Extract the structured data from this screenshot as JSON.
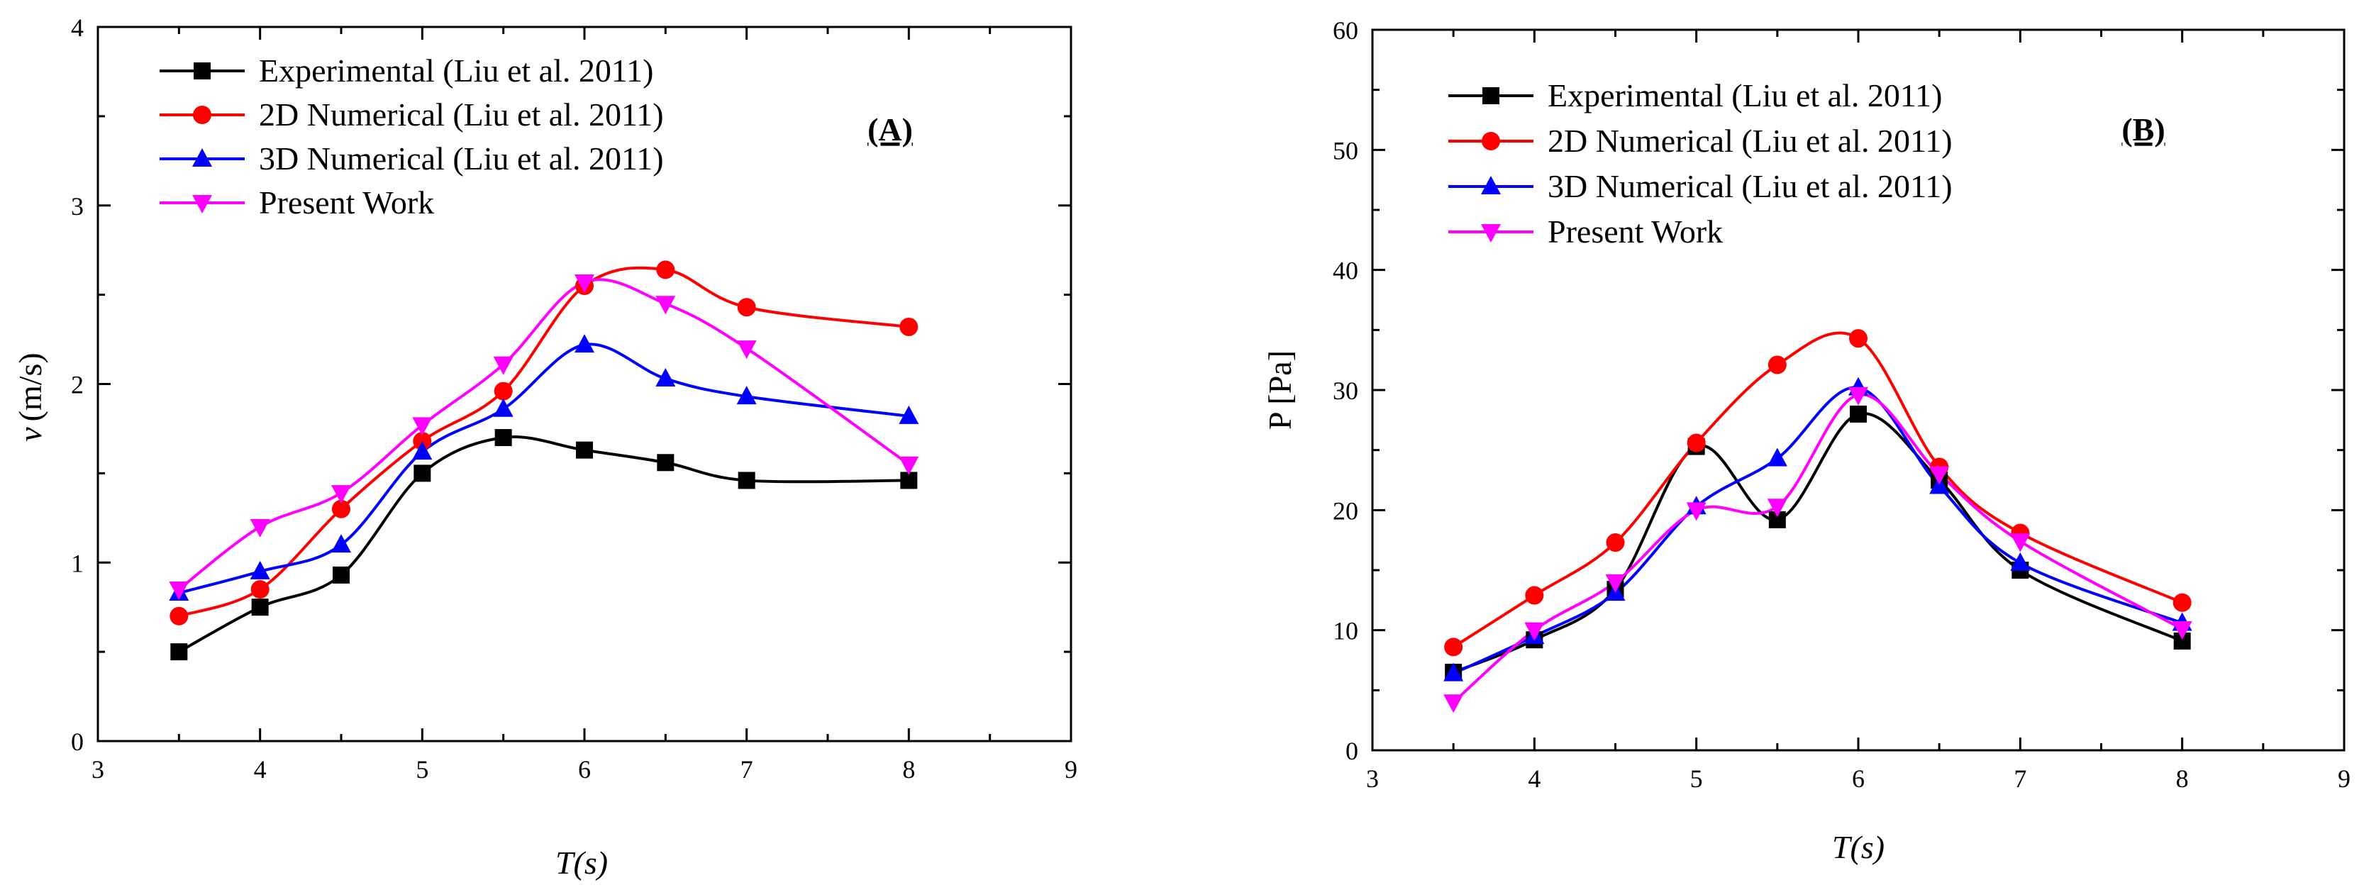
{
  "chart_data": [
    {
      "type": "line",
      "panel_label": "(A)",
      "xlabel": "T(s)",
      "ylabel_symbol": "v",
      "ylabel_unit": "(m/s)",
      "xlim": [
        3,
        9
      ],
      "ylim": [
        0,
        4
      ],
      "xticks": [
        3,
        4,
        5,
        6,
        7,
        8,
        9
      ],
      "yticks": [
        0,
        1,
        2,
        3,
        4
      ],
      "legend_position": "top-left",
      "series": [
        {
          "name": "Experimental (Liu et al. 2011)",
          "color": "#000000",
          "marker": "square",
          "x": [
            3.5,
            4.0,
            4.5,
            5.0,
            5.5,
            6.0,
            6.5,
            7.0,
            8.0
          ],
          "y": [
            0.5,
            0.75,
            0.93,
            1.5,
            1.7,
            1.63,
            1.56,
            1.46,
            1.46
          ]
        },
        {
          "name": "2D Numerical (Liu et al. 2011)",
          "color": "#ff0000",
          "marker": "circle",
          "x": [
            3.5,
            4.0,
            4.5,
            5.0,
            5.5,
            6.0,
            6.5,
            7.0,
            8.0
          ],
          "y": [
            0.7,
            0.85,
            1.3,
            1.68,
            1.96,
            2.55,
            2.64,
            2.43,
            2.32
          ]
        },
        {
          "name": "3D Numerical (Liu et al. 2011)",
          "color": "#0000ff",
          "marker": "triangle-up",
          "x": [
            3.5,
            4.0,
            4.5,
            5.0,
            5.5,
            6.0,
            6.5,
            7.0,
            8.0
          ],
          "y": [
            0.83,
            0.95,
            1.1,
            1.62,
            1.86,
            2.22,
            2.03,
            1.93,
            1.82
          ]
        },
        {
          "name": "Present Work",
          "color": "#ff00ff",
          "marker": "triangle-down",
          "x": [
            3.5,
            4.0,
            4.5,
            5.0,
            5.5,
            6.0,
            6.5,
            7.0,
            8.0
          ],
          "y": [
            0.85,
            1.2,
            1.39,
            1.77,
            2.11,
            2.57,
            2.45,
            2.2,
            1.55
          ]
        }
      ]
    },
    {
      "type": "line",
      "panel_label": "(B)",
      "xlabel": "T(s)",
      "ylabel_symbol": "P [Pa]",
      "ylabel_unit": "",
      "xlim": [
        3,
        9
      ],
      "ylim": [
        0,
        60
      ],
      "xticks": [
        3,
        4,
        5,
        6,
        7,
        8,
        9
      ],
      "yticks": [
        0,
        10,
        20,
        30,
        40,
        50,
        60
      ],
      "legend_position": "top-left",
      "series": [
        {
          "name": "Experimental (Liu et al. 2011)",
          "color": "#000000",
          "marker": "square",
          "x": [
            3.5,
            4.0,
            4.5,
            5.0,
            5.5,
            6.0,
            6.5,
            7.0,
            8.0
          ],
          "y": [
            6.5,
            9.2,
            13.4,
            25.3,
            19.2,
            28.0,
            22.5,
            15.0,
            9.1
          ]
        },
        {
          "name": "2D Numerical (Liu et al. 2011)",
          "color": "#ff0000",
          "marker": "circle",
          "x": [
            3.5,
            4.0,
            4.5,
            5.0,
            5.5,
            6.0,
            6.5,
            7.0,
            8.0
          ],
          "y": [
            8.6,
            12.9,
            17.3,
            25.6,
            32.1,
            34.3,
            23.6,
            18.1,
            12.3
          ]
        },
        {
          "name": "3D Numerical (Liu et al. 2011)",
          "color": "#0000ff",
          "marker": "triangle-up",
          "x": [
            3.5,
            4.0,
            4.5,
            5.0,
            5.5,
            6.0,
            6.5,
            7.0,
            8.0
          ],
          "y": [
            6.4,
            9.5,
            13.1,
            20.3,
            24.3,
            30.2,
            22.0,
            15.6,
            10.6
          ]
        },
        {
          "name": "Present Work",
          "color": "#ff00ff",
          "marker": "triangle-down",
          "x": [
            3.5,
            4.0,
            4.5,
            5.0,
            5.5,
            6.0,
            6.5,
            7.0,
            8.0
          ],
          "y": [
            4.0,
            10.0,
            14.0,
            20.0,
            20.3,
            29.6,
            23.0,
            17.4,
            10.1
          ]
        }
      ]
    }
  ]
}
